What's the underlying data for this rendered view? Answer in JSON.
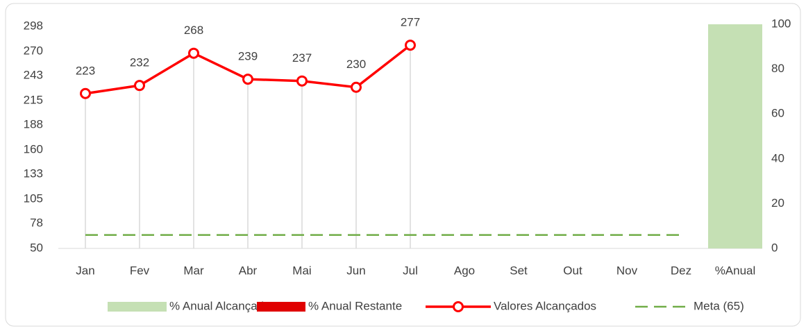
{
  "chart_data": {
    "type": "combo",
    "categories": [
      "Jan",
      "Fev",
      "Mar",
      "Abr",
      "Mai",
      "Jun",
      "Jul",
      "Ago",
      "Set",
      "Out",
      "Nov",
      "Dez",
      "%Anual"
    ],
    "ylim": [
      50,
      298
    ],
    "yticks": [
      50,
      78,
      105,
      133,
      160,
      188,
      215,
      243,
      270,
      298
    ],
    "y2lim": [
      0,
      100
    ],
    "y2ticks": [
      0,
      20,
      40,
      60,
      80,
      100
    ],
    "drop_lines": true,
    "legend": "bottom",
    "series": [
      {
        "name": "% Anual Alcançado",
        "type": "bar",
        "axis": "y2",
        "color": "#c5e0b4",
        "values": [
          null,
          null,
          null,
          null,
          null,
          null,
          null,
          null,
          null,
          null,
          null,
          null,
          100
        ]
      },
      {
        "name": "% Anual Restante",
        "type": "bar",
        "axis": "y2",
        "color": "#e00000",
        "values": [
          null,
          null,
          null,
          null,
          null,
          null,
          null,
          null,
          null,
          null,
          null,
          null,
          0
        ]
      },
      {
        "name": "Valores Alcançados",
        "type": "line",
        "color": "#ff0000",
        "markers": true,
        "data_labels": true,
        "values": [
          223,
          232,
          268,
          239,
          237,
          230,
          277,
          null,
          null,
          null,
          null,
          null,
          null
        ]
      },
      {
        "name": "Meta (65)",
        "type": "line",
        "color": "#70ad47",
        "dashed": true,
        "values": [
          65,
          65,
          65,
          65,
          65,
          65,
          65,
          65,
          65,
          65,
          65,
          65,
          null
        ]
      }
    ]
  }
}
